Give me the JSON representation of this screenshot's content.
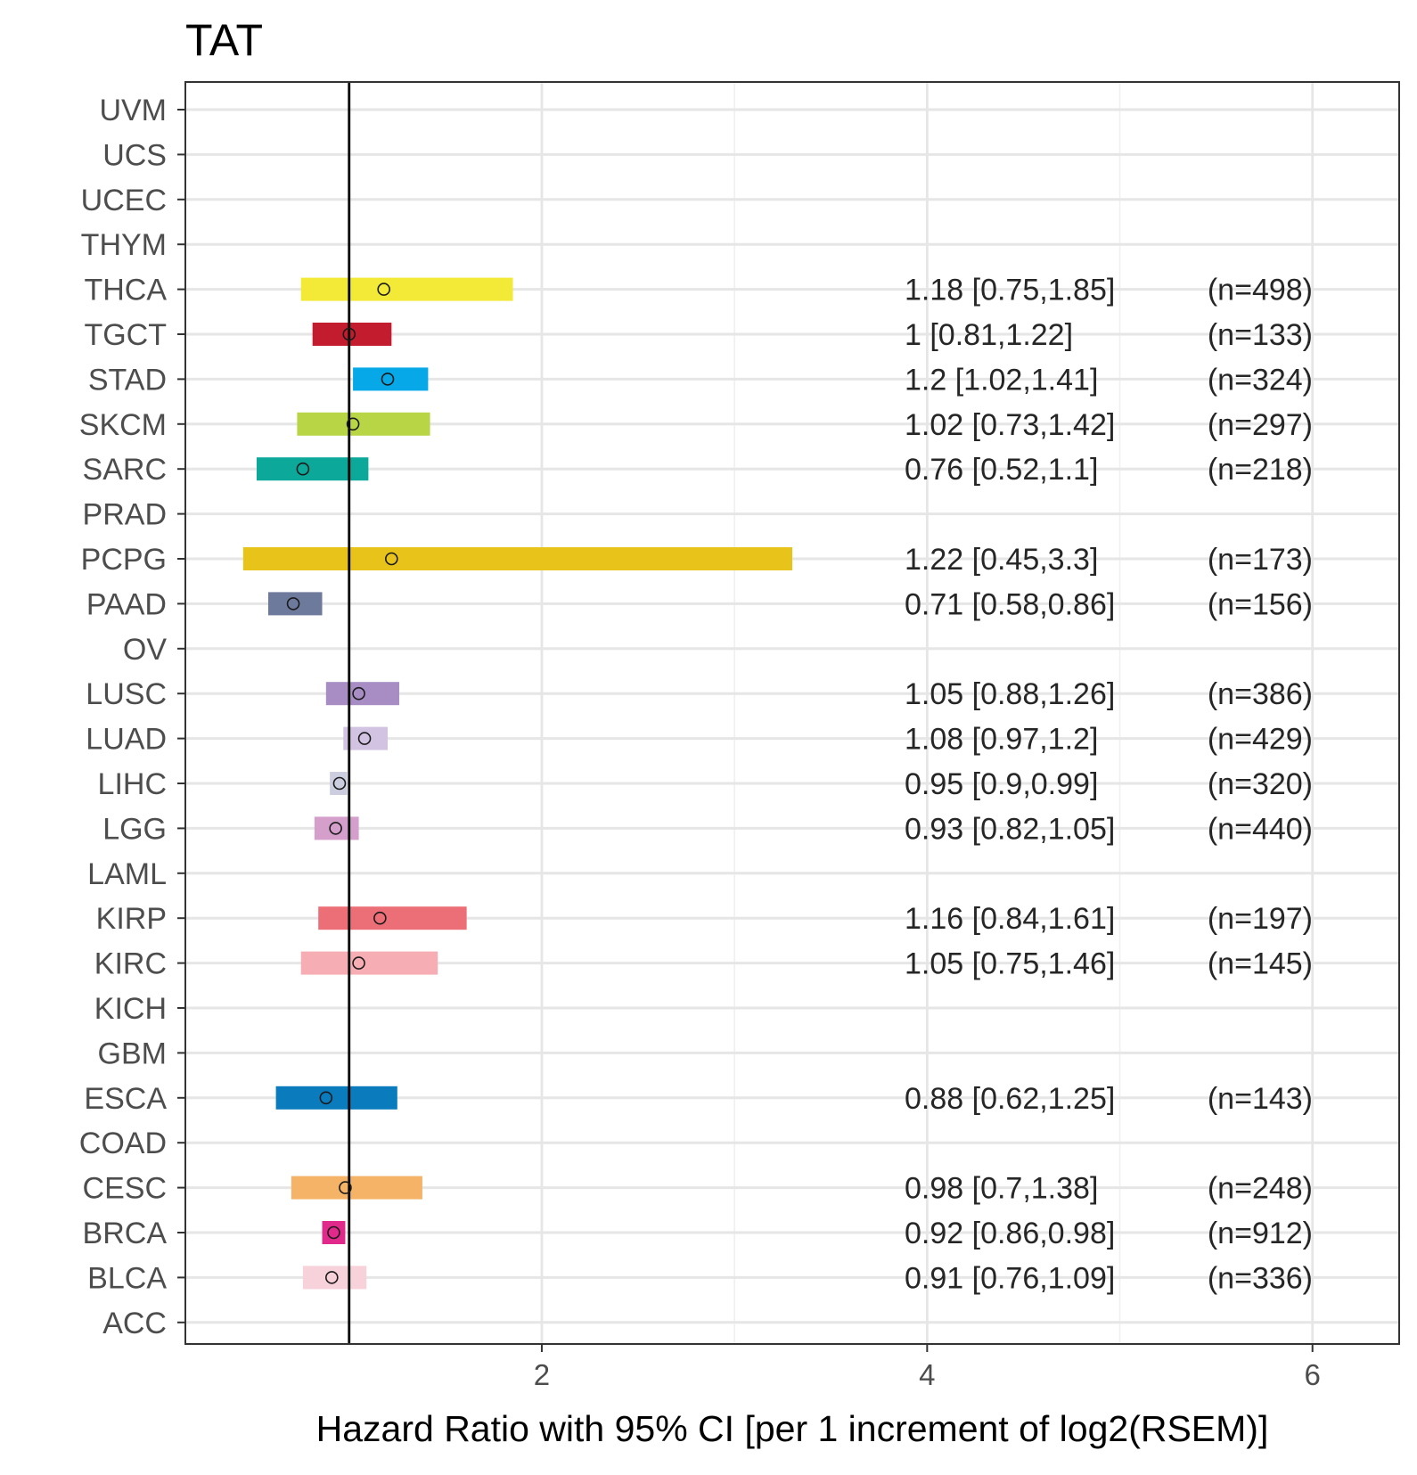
{
  "chart_data": {
    "type": "forest",
    "title": "TAT",
    "xlabel": "Hazard Ratio with 95% CI [per 1 increment of log2(RSEM)]",
    "ylabel": "",
    "xlim": [
      0.15,
      6.45
    ],
    "x_ticks": [
      2,
      4,
      6
    ],
    "x_tick_labels": [
      "2",
      "4",
      "6"
    ],
    "x_minor_ticks": [
      1,
      3,
      5
    ],
    "reference_line": 1,
    "grid": true,
    "categories": [
      "UVM",
      "UCS",
      "UCEC",
      "THYM",
      "THCA",
      "TGCT",
      "STAD",
      "SKCM",
      "SARC",
      "PRAD",
      "PCPG",
      "PAAD",
      "OV",
      "LUSC",
      "LUAD",
      "LIHC",
      "LGG",
      "LAML",
      "KIRP",
      "KIRC",
      "KICH",
      "GBM",
      "ESCA",
      "COAD",
      "CESC",
      "BRCA",
      "BLCA",
      "ACC"
    ],
    "rows": [
      {
        "cancer": "UVM"
      },
      {
        "cancer": "UCS"
      },
      {
        "cancer": "UCEC"
      },
      {
        "cancer": "THYM"
      },
      {
        "cancer": "THCA",
        "hr": 1.18,
        "lower": 0.75,
        "upper": 1.85,
        "color": "#F2EA36",
        "label": "1.18 [0.75,1.85]",
        "n": "(n=498)"
      },
      {
        "cancer": "TGCT",
        "hr": 1.0,
        "lower": 0.81,
        "upper": 1.22,
        "color": "#C21C2E",
        "label": "1 [0.81,1.22]",
        "n": "(n=133)"
      },
      {
        "cancer": "STAD",
        "hr": 1.2,
        "lower": 1.02,
        "upper": 1.41,
        "color": "#06A8E8",
        "label": "1.2 [1.02,1.41]",
        "n": "(n=324)"
      },
      {
        "cancer": "SKCM",
        "hr": 1.02,
        "lower": 0.73,
        "upper": 1.42,
        "color": "#B8D545",
        "label": "1.02 [0.73,1.42]",
        "n": "(n=297)"
      },
      {
        "cancer": "SARC",
        "hr": 0.76,
        "lower": 0.52,
        "upper": 1.1,
        "color": "#0CA89A",
        "label": "0.76 [0.52,1.1]",
        "n": "(n=218)"
      },
      {
        "cancer": "PRAD"
      },
      {
        "cancer": "PCPG",
        "hr": 1.22,
        "lower": 0.45,
        "upper": 3.3,
        "color": "#E8C41B",
        "label": "1.22 [0.45,3.3]",
        "n": "(n=173)"
      },
      {
        "cancer": "PAAD",
        "hr": 0.71,
        "lower": 0.58,
        "upper": 0.86,
        "color": "#6E7A9C",
        "label": "0.71 [0.58,0.86]",
        "n": "(n=156)"
      },
      {
        "cancer": "OV"
      },
      {
        "cancer": "LUSC",
        "hr": 1.05,
        "lower": 0.88,
        "upper": 1.26,
        "color": "#A88CC4",
        "label": "1.05 [0.88,1.26]",
        "n": "(n=386)"
      },
      {
        "cancer": "LUAD",
        "hr": 1.08,
        "lower": 0.97,
        "upper": 1.2,
        "color": "#D3C3E2",
        "label": "1.08 [0.97,1.2]",
        "n": "(n=429)"
      },
      {
        "cancer": "LIHC",
        "hr": 0.95,
        "lower": 0.9,
        "upper": 0.99,
        "color": "#CCCDDE",
        "label": "0.95 [0.9,0.99]",
        "n": "(n=320)"
      },
      {
        "cancer": "LGG",
        "hr": 0.93,
        "lower": 0.82,
        "upper": 1.05,
        "color": "#D59FCB",
        "label": "0.93 [0.82,1.05]",
        "n": "(n=440)"
      },
      {
        "cancer": "LAML"
      },
      {
        "cancer": "KIRP",
        "hr": 1.16,
        "lower": 0.84,
        "upper": 1.61,
        "color": "#EC6F78",
        "label": "1.16 [0.84,1.61]",
        "n": "(n=197)"
      },
      {
        "cancer": "KIRC",
        "hr": 1.05,
        "lower": 0.75,
        "upper": 1.46,
        "color": "#F7ADB4",
        "label": "1.05 [0.75,1.46]",
        "n": "(n=145)"
      },
      {
        "cancer": "KICH"
      },
      {
        "cancer": "GBM"
      },
      {
        "cancer": "ESCA",
        "hr": 0.88,
        "lower": 0.62,
        "upper": 1.25,
        "color": "#0A7BBC",
        "label": "0.88 [0.62,1.25]",
        "n": "(n=143)"
      },
      {
        "cancer": "COAD"
      },
      {
        "cancer": "CESC",
        "hr": 0.98,
        "lower": 0.7,
        "upper": 1.38,
        "color": "#F4B366",
        "label": "0.98 [0.7,1.38]",
        "n": "(n=248)"
      },
      {
        "cancer": "BRCA",
        "hr": 0.92,
        "lower": 0.86,
        "upper": 0.98,
        "color": "#E1288B",
        "label": "0.92 [0.86,0.98]",
        "n": "(n=912)"
      },
      {
        "cancer": "BLCA",
        "hr": 0.91,
        "lower": 0.76,
        "upper": 1.09,
        "color": "#F8D2DA",
        "label": "0.91 [0.76,1.09]",
        "n": "(n=336)"
      },
      {
        "cancer": "ACC"
      }
    ]
  }
}
